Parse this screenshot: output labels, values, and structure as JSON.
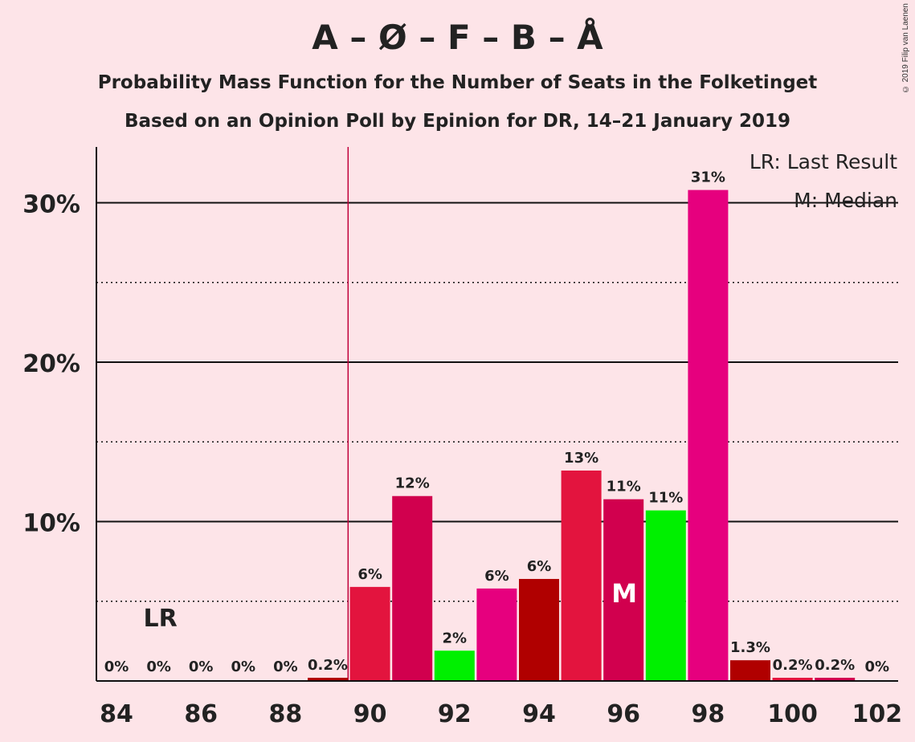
{
  "title": "A – Ø – F – B – Å",
  "subtitle": "Probability Mass Function for the Number of Seats in the Folketinget",
  "subtitle2": "Based on an Opinion Poll by Epinion for DR, 14–21 January 2019",
  "copyright": "© 2019 Filip van Laenen",
  "legend": {
    "lr": "LR: Last Result",
    "m": "M: Median"
  },
  "markers": {
    "lr_label": "LR",
    "lr_seats": 85,
    "median_label": "M",
    "median_seats": 96,
    "majority_line_seats": 89.5
  },
  "colors": {
    "background": "#fde4e8",
    "crimson": "#e3143e",
    "deep_rose": "#d1004e",
    "magenta": "#e6007e",
    "dark_red": "#b00000",
    "green": "#00f000"
  },
  "chart_data": {
    "type": "bar",
    "x": [
      84,
      85,
      86,
      87,
      88,
      89,
      90,
      91,
      92,
      93,
      94,
      95,
      96,
      97,
      98,
      99,
      100,
      101,
      102
    ],
    "values": [
      0,
      0,
      0,
      0,
      0,
      0.2,
      5.9,
      11.6,
      1.9,
      5.8,
      6.4,
      13.2,
      11.4,
      10.7,
      30.8,
      1.3,
      0.2,
      0.2,
      0
    ],
    "labels": [
      "0%",
      "0%",
      "0%",
      "0%",
      "0%",
      "0.2%",
      "6%",
      "12%",
      "2%",
      "6%",
      "6%",
      "13%",
      "11%",
      "11%",
      "31%",
      "1.3%",
      "0.2%",
      "0.2%",
      "0%"
    ],
    "bar_colors": [
      "#b00000",
      "#b00000",
      "#b00000",
      "#b00000",
      "#b00000",
      "#b00000",
      "#e3143e",
      "#d1004e",
      "#00f000",
      "#e6007e",
      "#b00000",
      "#e3143e",
      "#d1004e",
      "#00f000",
      "#e6007e",
      "#b00000",
      "#e3143e",
      "#d1004e",
      "#00f000"
    ],
    "x_ticks": [
      "84",
      "86",
      "88",
      "90",
      "92",
      "94",
      "96",
      "98",
      "100",
      "102"
    ],
    "y_ticks": [
      "10%",
      "20%",
      "30%"
    ],
    "ylim": [
      0,
      33.5
    ],
    "xlabel": "",
    "ylabel": "",
    "grid": "solid at 10/20/30%, dotted at 5/15/25%"
  }
}
